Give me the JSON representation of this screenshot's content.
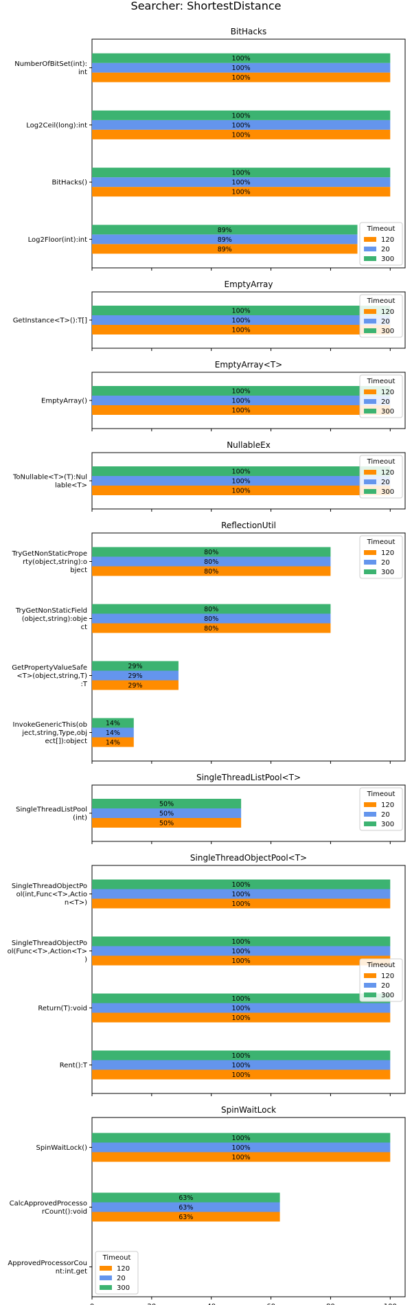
{
  "title": "Searcher: ShortestDistance",
  "colors": {
    "120": "#ff8c00",
    "20": "#6495ed",
    "300": "#3cb371"
  },
  "chart_data": {
    "type": "bar",
    "orientation": "horizontal",
    "title": "Searcher: ShortestDistance",
    "xlim": [
      0,
      105
    ],
    "x_ticks": [
      "0",
      "20",
      "40",
      "60",
      "80",
      "100"
    ],
    "legend_title": "Timeout",
    "legend_entries": [
      "120",
      "20",
      "300"
    ],
    "panels": [
      {
        "title": "BitHacks",
        "legend_position": "lower-right",
        "categories": [
          {
            "label": [
              "NumberOfBitSet(int):",
              "int"
            ],
            "value": 100,
            "value_label": "100%"
          },
          {
            "label": [
              "Log2Ceil(long):int"
            ],
            "value": 100,
            "value_label": "100%"
          },
          {
            "label": [
              "BitHacks()"
            ],
            "value": 100,
            "value_label": "100%"
          },
          {
            "label": [
              "Log2Floor(int):int"
            ],
            "value": 89,
            "value_label": "89%"
          }
        ]
      },
      {
        "title": "EmptyArray",
        "legend_position": "upper-right",
        "categories": [
          {
            "label": [
              "GetInstance<T>():T[]"
            ],
            "value": 100,
            "value_label": "100%"
          }
        ]
      },
      {
        "title": "EmptyArray<T>",
        "legend_position": "upper-right",
        "categories": [
          {
            "label": [
              "EmptyArray()"
            ],
            "value": 100,
            "value_label": "100%"
          }
        ]
      },
      {
        "title": "NullableEx",
        "legend_position": "upper-right",
        "categories": [
          {
            "label": [
              "ToNullable<T>(T):Nul",
              "lable<T>"
            ],
            "value": 100,
            "value_label": "100%"
          }
        ]
      },
      {
        "title": "ReflectionUtil",
        "legend_position": "upper-right",
        "categories": [
          {
            "label": [
              "TryGetNonStaticPrope",
              "rty(object,string):o",
              "bject"
            ],
            "value": 80,
            "value_label": "80%"
          },
          {
            "label": [
              "TryGetNonStaticField",
              "(object,string):obje",
              "ct"
            ],
            "value": 80,
            "value_label": "80%"
          },
          {
            "label": [
              "GetPropertyValueSafe",
              "<T>(object,string,T)",
              ":T"
            ],
            "value": 29,
            "value_label": "29%"
          },
          {
            "label": [
              "InvokeGenericThis(ob",
              "ject,string,Type,obj",
              "ect[]):object"
            ],
            "value": 14,
            "value_label": "14%"
          }
        ]
      },
      {
        "title": "SingleThreadListPool<T>",
        "legend_position": "upper-right",
        "categories": [
          {
            "label": [
              "SingleThreadListPool",
              "(int)"
            ],
            "value": 50,
            "value_label": "50%"
          }
        ]
      },
      {
        "title": "SingleThreadObjectPool<T>",
        "legend_position": "center-right",
        "categories": [
          {
            "label": [
              "SingleThreadObjectPo",
              "ol(int,Func<T>,Actio",
              "n<T>)"
            ],
            "value": 100,
            "value_label": "100%"
          },
          {
            "label": [
              "SingleThreadObjectPo",
              "ol(Func<T>,Action<T>",
              ")"
            ],
            "value": 100,
            "value_label": "100%"
          },
          {
            "label": [
              "Return(T):void"
            ],
            "value": 100,
            "value_label": "100%"
          },
          {
            "label": [
              "Rent():T"
            ],
            "value": 100,
            "value_label": "100%"
          }
        ]
      },
      {
        "title": "SpinWaitLock",
        "legend_position": "lower-left",
        "categories": [
          {
            "label": [
              "SpinWaitLock()"
            ],
            "value": 100,
            "value_label": "100%"
          },
          {
            "label": [
              "CalcApprovedProcesso",
              "rCount():void"
            ],
            "value": 63,
            "value_label": "63%"
          },
          {
            "label": [
              "ApprovedProcessorCou",
              "nt:int.get"
            ],
            "value": null,
            "value_label": ""
          }
        ]
      }
    ]
  }
}
